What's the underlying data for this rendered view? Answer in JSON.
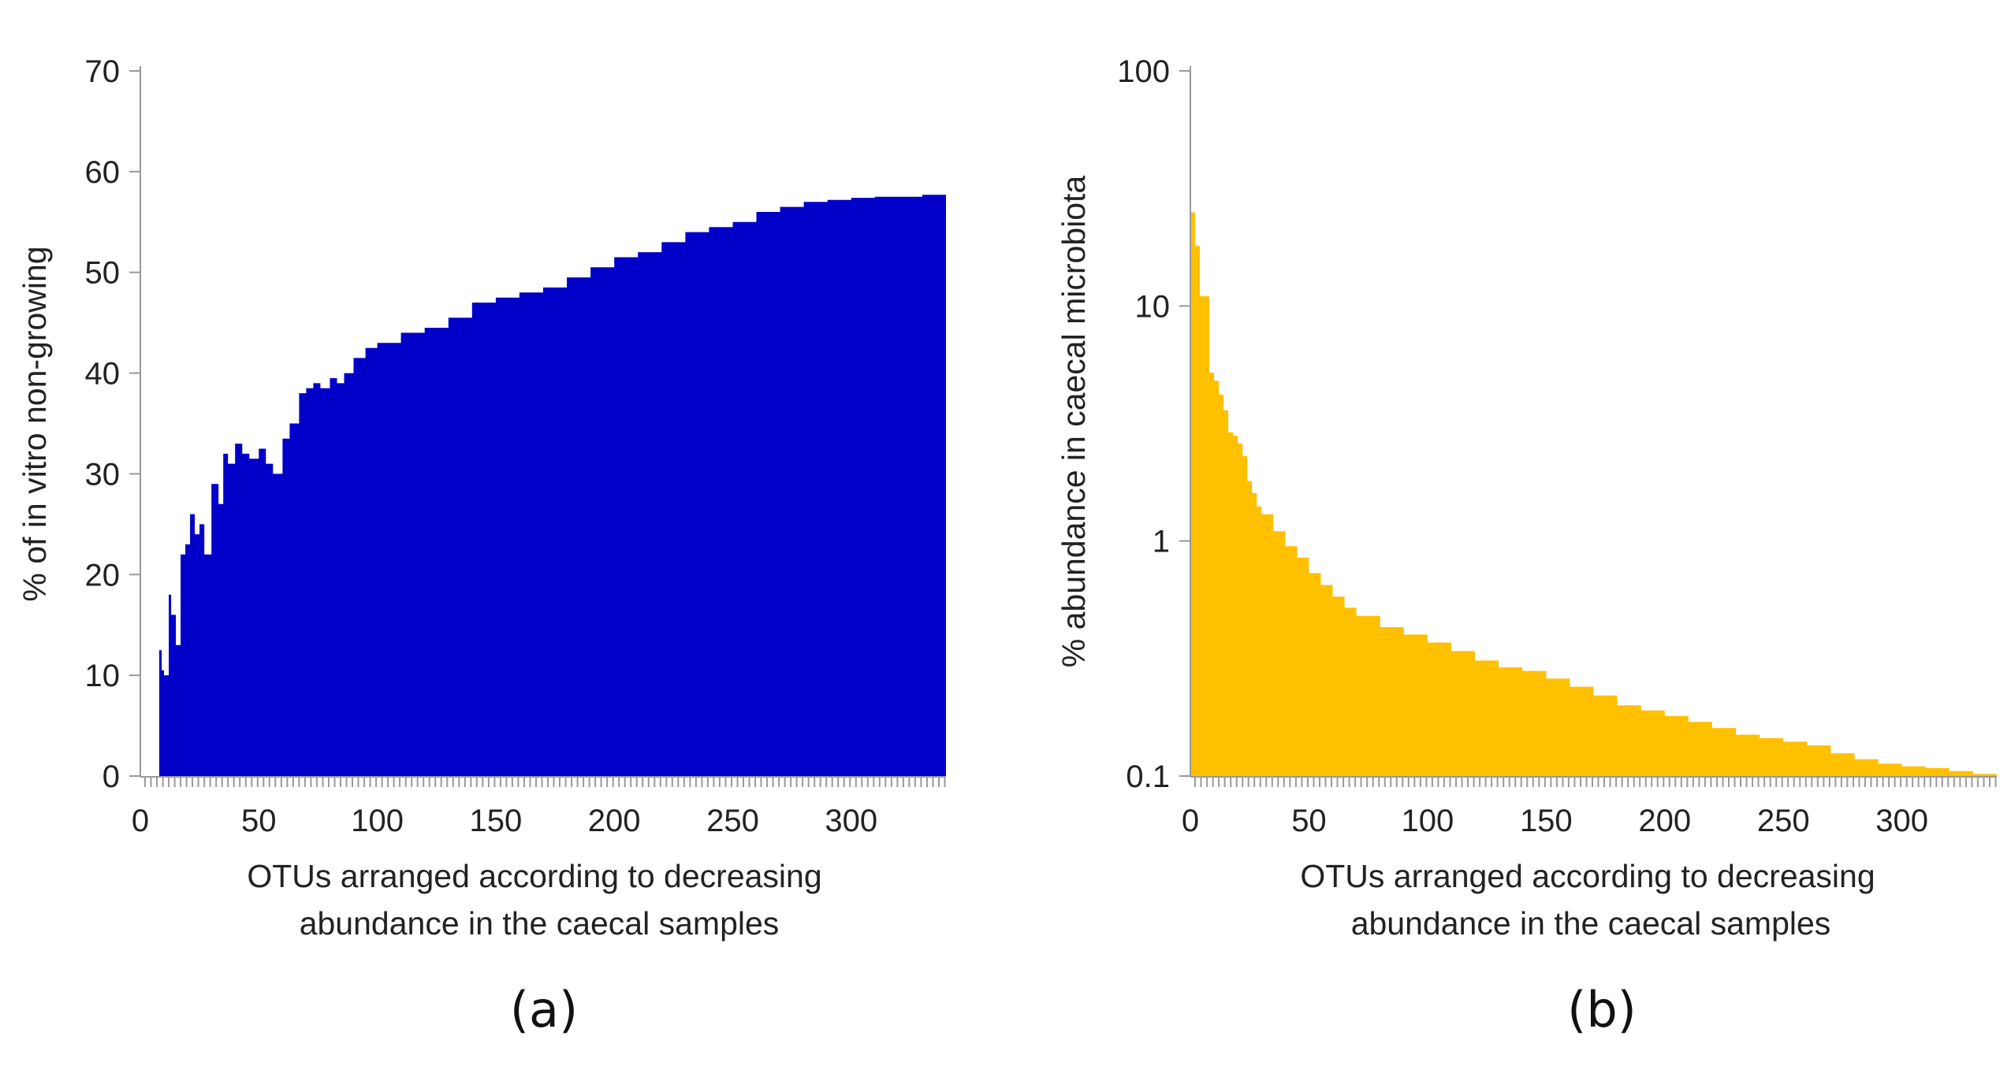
{
  "chart_data": [
    {
      "panel": "(a)",
      "type": "area",
      "ylabel": "% of in vitro non-growing",
      "xlabel_lines": [
        "OTUs arranged according to decreasing",
        "abundance in the caecal samples"
      ],
      "xlim": [
        0,
        340
      ],
      "ylim": [
        0,
        70
      ],
      "x_ticks": [
        "0",
        "50",
        "100",
        "150",
        "200",
        "250",
        "300"
      ],
      "y_ticks": [
        "0",
        "10",
        "20",
        "30",
        "40",
        "50",
        "60",
        "70"
      ],
      "color": "#0000c8",
      "x": [
        8,
        9,
        10,
        12,
        13,
        15,
        17,
        19,
        21,
        23,
        25,
        27,
        30,
        33,
        35,
        37,
        40,
        43,
        46,
        50,
        53,
        56,
        60,
        63,
        67,
        70,
        73,
        76,
        80,
        83,
        86,
        90,
        95,
        100,
        110,
        120,
        130,
        140,
        150,
        160,
        170,
        180,
        190,
        200,
        210,
        220,
        230,
        240,
        250,
        260,
        270,
        280,
        290,
        300,
        310,
        320,
        330,
        340
      ],
      "values": [
        12.5,
        10.5,
        10,
        18,
        16,
        13,
        22,
        23,
        26,
        24,
        25,
        22,
        29,
        27,
        32,
        31,
        33,
        32,
        31.5,
        32.5,
        31,
        30,
        33.5,
        35,
        38,
        38.5,
        39,
        38.5,
        39.5,
        39,
        40,
        41.5,
        42.5,
        43,
        44,
        44.5,
        45.5,
        47,
        47.5,
        48,
        48.5,
        49.5,
        50.5,
        51.5,
        52,
        53,
        54,
        54.5,
        55,
        56,
        56.5,
        57,
        57.2,
        57.4,
        57.5,
        57.5,
        57.7,
        58
      ]
    },
    {
      "panel": "(b)",
      "type": "area",
      "ylabel": "% abundance in caecal microbiota",
      "xlabel_lines": [
        "OTUs arranged according to decreasing",
        "abundance in the caecal samples"
      ],
      "xlim": [
        0,
        340
      ],
      "ylim": [
        0.1,
        100
      ],
      "yscale": "log",
      "x_ticks": [
        "0",
        "50",
        "100",
        "150",
        "200",
        "250",
        "300"
      ],
      "y_ticks": [
        "0.1",
        "1",
        "10",
        "100"
      ],
      "color": "#ffc000",
      "x": [
        0,
        1,
        2,
        3,
        4,
        5,
        6,
        7,
        8,
        9,
        10,
        12,
        14,
        16,
        18,
        20,
        22,
        24,
        26,
        28,
        30,
        35,
        40,
        45,
        50,
        55,
        60,
        65,
        70,
        80,
        90,
        100,
        110,
        120,
        130,
        140,
        150,
        160,
        170,
        180,
        190,
        200,
        210,
        220,
        230,
        240,
        250,
        260,
        270,
        280,
        290,
        300,
        310,
        320,
        330,
        340
      ],
      "values": [
        25,
        25,
        18,
        18,
        11,
        11,
        11,
        11,
        5.2,
        5.2,
        4.8,
        4.2,
        3.6,
        2.9,
        2.8,
        2.6,
        2.3,
        1.8,
        1.6,
        1.4,
        1.3,
        1.1,
        0.95,
        0.85,
        0.73,
        0.65,
        0.58,
        0.52,
        0.48,
        0.43,
        0.4,
        0.37,
        0.34,
        0.31,
        0.29,
        0.28,
        0.26,
        0.24,
        0.22,
        0.2,
        0.19,
        0.18,
        0.17,
        0.16,
        0.15,
        0.145,
        0.14,
        0.135,
        0.125,
        0.118,
        0.113,
        0.11,
        0.108,
        0.105,
        0.102,
        0.101
      ]
    }
  ]
}
